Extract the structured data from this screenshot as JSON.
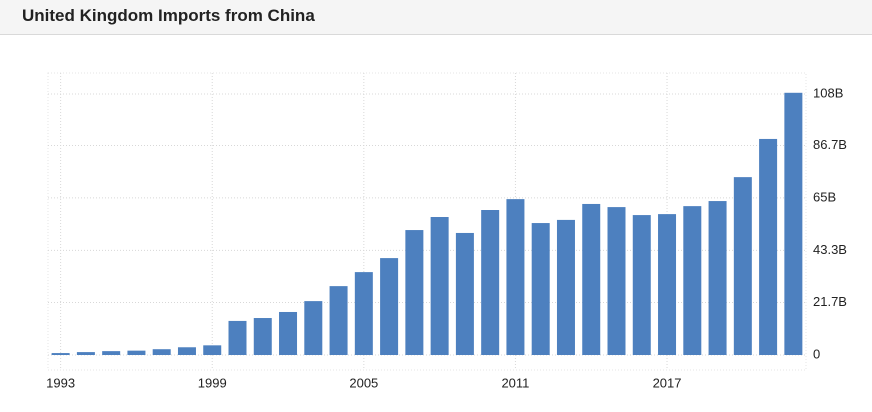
{
  "chart_data": {
    "type": "bar",
    "title": "United Kingdom Imports from China",
    "categories": [
      "1993",
      null,
      null,
      null,
      null,
      null,
      "1999",
      null,
      null,
      null,
      null,
      null,
      "2005",
      null,
      null,
      null,
      null,
      null,
      "2011",
      null,
      null,
      null,
      null,
      null,
      "2017",
      null,
      null,
      null,
      null,
      null
    ],
    "values": [
      0.8,
      1.2,
      1.6,
      1.8,
      2.4,
      3.2,
      4.0,
      14.1,
      15.3,
      17.8,
      22.3,
      28.5,
      34.3,
      40.1,
      51.7,
      57.1,
      50.5,
      60.0,
      64.5,
      54.6,
      55.9,
      62.5,
      61.2,
      57.9,
      58.3,
      61.6,
      63.7,
      73.6,
      89.4,
      108.5
    ],
    "color": "#4d80bf",
    "ylim": [
      0,
      108
    ],
    "yticks": [
      0,
      {
        "value": 21.7,
        "label": "21.7B"
      },
      {
        "value": 43.3,
        "label": "43.3B"
      },
      {
        "value": 65,
        "label": "65B"
      },
      {
        "value": 86.7,
        "label": "86.7B"
      },
      {
        "value": 108,
        "label": "108B"
      }
    ],
    "grid": true
  }
}
